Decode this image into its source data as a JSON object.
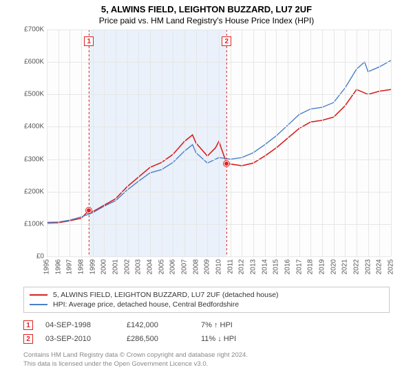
{
  "title": "5, ALWINS FIELD, LEIGHTON BUZZARD, LU7 2UF",
  "subtitle": "Price paid vs. HM Land Registry's House Price Index (HPI)",
  "chart": {
    "type": "line",
    "background_color": "#fdfdfd",
    "grid_color": "#e6e6e6",
    "shade_color": "#eaf1fa",
    "ylim": [
      0,
      700000
    ],
    "ytick_step": 100000,
    "yticks": [
      "£0",
      "£100K",
      "£200K",
      "£300K",
      "£400K",
      "£500K",
      "£600K",
      "£700K"
    ],
    "xlim": [
      1995,
      2025
    ],
    "xticks": [
      1995,
      1996,
      1997,
      1998,
      1999,
      2000,
      2001,
      2002,
      2003,
      2004,
      2005,
      2006,
      2007,
      2008,
      2009,
      2010,
      2011,
      2012,
      2013,
      2014,
      2015,
      2016,
      2017,
      2018,
      2019,
      2020,
      2021,
      2022,
      2023,
      2024,
      2025
    ],
    "shade_ranges": [
      {
        "from": 1998.68,
        "to": 2010.68
      }
    ],
    "series": [
      {
        "key": "property",
        "label": "5, ALWINS FIELD, LEIGHTON BUZZARD, LU7 2UF (detached house)",
        "color": "#d81e1e",
        "line_width": 1.6,
        "values": [
          [
            1995,
            103000
          ],
          [
            1996,
            104000
          ],
          [
            1997,
            110000
          ],
          [
            1998,
            118000
          ],
          [
            1998.68,
            142000
          ],
          [
            1999,
            138000
          ],
          [
            2000,
            158000
          ],
          [
            2001,
            178000
          ],
          [
            2002,
            215000
          ],
          [
            2003,
            245000
          ],
          [
            2004,
            275000
          ],
          [
            2005,
            290000
          ],
          [
            2006,
            315000
          ],
          [
            2007,
            355000
          ],
          [
            2007.7,
            375000
          ],
          [
            2008,
            350000
          ],
          [
            2009,
            310000
          ],
          [
            2009.7,
            335000
          ],
          [
            2010,
            355000
          ],
          [
            2010.68,
            286500
          ],
          [
            2011,
            285000
          ],
          [
            2012,
            280000
          ],
          [
            2013,
            288000
          ],
          [
            2014,
            310000
          ],
          [
            2015,
            335000
          ],
          [
            2016,
            365000
          ],
          [
            2017,
            395000
          ],
          [
            2018,
            415000
          ],
          [
            2019,
            420000
          ],
          [
            2020,
            430000
          ],
          [
            2021,
            465000
          ],
          [
            2022,
            515000
          ],
          [
            2023,
            500000
          ],
          [
            2024,
            510000
          ],
          [
            2025,
            515000
          ]
        ]
      },
      {
        "key": "hpi",
        "label": "HPI: Average price, detached house, Central Bedfordshire",
        "color": "#4a7fc7",
        "line_width": 1.4,
        "values": [
          [
            1995,
            105000
          ],
          [
            1996,
            106000
          ],
          [
            1997,
            112000
          ],
          [
            1998,
            122000
          ],
          [
            1999,
            135000
          ],
          [
            2000,
            155000
          ],
          [
            2001,
            172000
          ],
          [
            2002,
            205000
          ],
          [
            2003,
            232000
          ],
          [
            2004,
            258000
          ],
          [
            2005,
            268000
          ],
          [
            2006,
            290000
          ],
          [
            2007,
            325000
          ],
          [
            2007.7,
            345000
          ],
          [
            2008,
            320000
          ],
          [
            2009,
            288000
          ],
          [
            2010,
            305000
          ],
          [
            2011,
            300000
          ],
          [
            2012,
            305000
          ],
          [
            2013,
            320000
          ],
          [
            2014,
            345000
          ],
          [
            2015,
            372000
          ],
          [
            2016,
            405000
          ],
          [
            2017,
            438000
          ],
          [
            2018,
            455000
          ],
          [
            2019,
            460000
          ],
          [
            2020,
            475000
          ],
          [
            2021,
            520000
          ],
          [
            2022,
            578000
          ],
          [
            2022.7,
            600000
          ],
          [
            2023,
            570000
          ],
          [
            2024,
            585000
          ],
          [
            2025,
            605000
          ]
        ]
      }
    ],
    "event_markers": [
      {
        "n": "1",
        "x": 1998.68,
        "y_label": 35000,
        "y_dot": 142000
      },
      {
        "n": "2",
        "x": 2010.68,
        "y_label": 35000,
        "y_dot": 286500
      }
    ]
  },
  "legend": {
    "items": [
      {
        "color": "#d81e1e",
        "label": "5, ALWINS FIELD, LEIGHTON BUZZARD, LU7 2UF (detached house)"
      },
      {
        "color": "#4a7fc7",
        "label": "HPI: Average price, detached house, Central Bedfordshire"
      }
    ]
  },
  "events": [
    {
      "n": "1",
      "date": "04-SEP-1998",
      "price": "£142,000",
      "pct": "7% ↑ HPI"
    },
    {
      "n": "2",
      "date": "03-SEP-2010",
      "price": "£286,500",
      "pct": "11% ↓ HPI"
    }
  ],
  "footer": {
    "line1": "Contains HM Land Registry data © Crown copyright and database right 2024.",
    "line2": "This data is licensed under the Open Government Licence v3.0."
  }
}
